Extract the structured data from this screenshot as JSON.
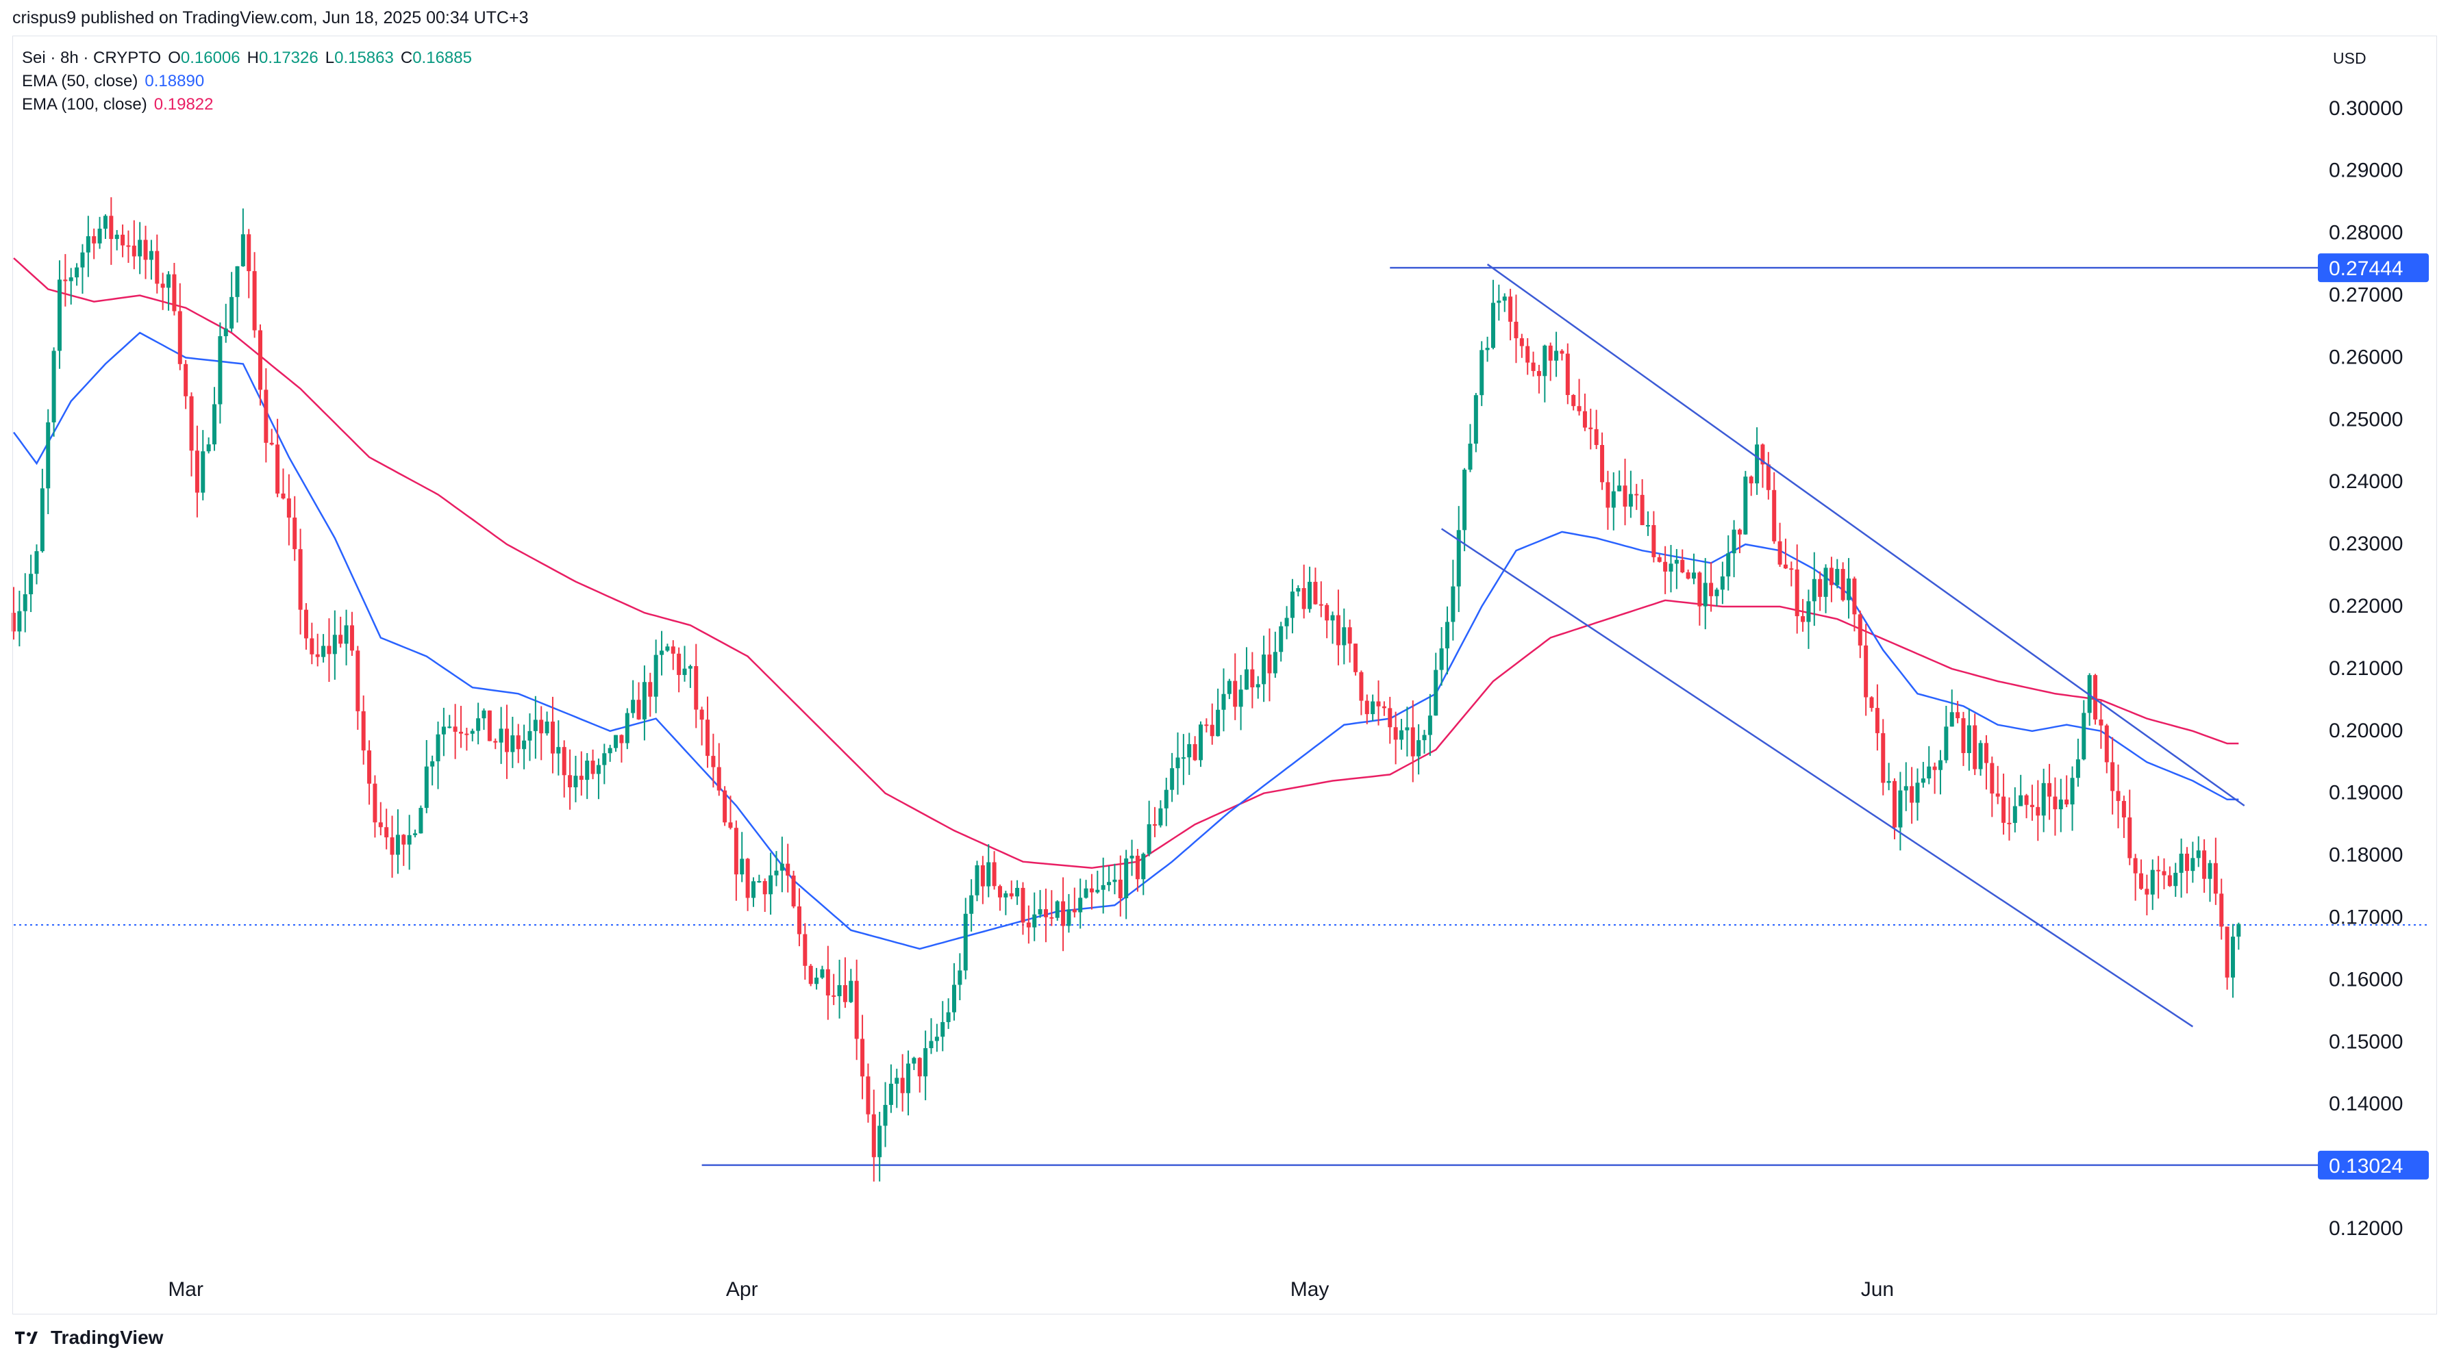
{
  "header": {
    "published": "crispus9 published on TradingView.com, Jun 18, 2025 00:34 UTC+3",
    "symbol": "Sei · 8h · CRYPTO",
    "ohlc": [
      {
        "k": "O",
        "v": "0.16006"
      },
      {
        "k": "H",
        "v": "0.17326"
      },
      {
        "k": "L",
        "v": "0.15863"
      },
      {
        "k": "C",
        "v": "0.16885"
      }
    ],
    "ema50_label": "EMA (50, close)",
    "ema50_value": "0.18890",
    "ema100_label": "EMA (100, close)",
    "ema100_value": "0.19822",
    "currency": "USD"
  },
  "footer": {
    "brand": "TradingView"
  },
  "colors": {
    "up": "#089981",
    "down": "#f23645",
    "ema50": "#2962ff",
    "ema100": "#e91e63",
    "line": "#3c5bd6",
    "badge": "#2962ff"
  },
  "chart_data": {
    "type": "candlestick",
    "timeframe": "8h",
    "ylim": [
      0.11,
      0.3
    ],
    "yticks": [
      "0.30000",
      "0.29000",
      "0.28000",
      "0.27000",
      "0.26000",
      "0.25000",
      "0.24000",
      "0.23000",
      "0.22000",
      "0.21000",
      "0.20000",
      "0.19000",
      "0.18000",
      "0.17000",
      "0.16000",
      "0.15000",
      "0.14000",
      "0.12000"
    ],
    "xticks": [
      "Mar",
      "Apr",
      "May",
      "Jun"
    ],
    "xlim_bars": [
      0,
      390
    ],
    "xtick_positions": [
      30,
      127,
      226,
      325
    ],
    "candles_anchor": [
      [
        0,
        0.219
      ],
      [
        4,
        0.227
      ],
      [
        8,
        0.27
      ],
      [
        14,
        0.281
      ],
      [
        20,
        0.279
      ],
      [
        28,
        0.27
      ],
      [
        32,
        0.236
      ],
      [
        36,
        0.262
      ],
      [
        40,
        0.279
      ],
      [
        44,
        0.249
      ],
      [
        48,
        0.232
      ],
      [
        52,
        0.21
      ],
      [
        58,
        0.217
      ],
      [
        62,
        0.19
      ],
      [
        68,
        0.179
      ],
      [
        74,
        0.201
      ],
      [
        80,
        0.202
      ],
      [
        86,
        0.197
      ],
      [
        92,
        0.2
      ],
      [
        98,
        0.192
      ],
      [
        104,
        0.195
      ],
      [
        110,
        0.206
      ],
      [
        114,
        0.213
      ],
      [
        118,
        0.208
      ],
      [
        124,
        0.184
      ],
      [
        128,
        0.175
      ],
      [
        134,
        0.178
      ],
      [
        138,
        0.162
      ],
      [
        146,
        0.159
      ],
      [
        150,
        0.133
      ],
      [
        154,
        0.143
      ],
      [
        160,
        0.148
      ],
      [
        164,
        0.158
      ],
      [
        168,
        0.178
      ],
      [
        174,
        0.174
      ],
      [
        178,
        0.169
      ],
      [
        184,
        0.17
      ],
      [
        190,
        0.174
      ],
      [
        196,
        0.178
      ],
      [
        202,
        0.194
      ],
      [
        208,
        0.2
      ],
      [
        214,
        0.208
      ],
      [
        220,
        0.212
      ],
      [
        224,
        0.222
      ],
      [
        230,
        0.219
      ],
      [
        236,
        0.205
      ],
      [
        242,
        0.198
      ],
      [
        246,
        0.197
      ],
      [
        252,
        0.232
      ],
      [
        256,
        0.262
      ],
      [
        260,
        0.272
      ],
      [
        264,
        0.258
      ],
      [
        268,
        0.262
      ],
      [
        272,
        0.254
      ],
      [
        278,
        0.238
      ],
      [
        284,
        0.236
      ],
      [
        288,
        0.224
      ],
      [
        292,
        0.227
      ],
      [
        296,
        0.219
      ],
      [
        300,
        0.231
      ],
      [
        304,
        0.245
      ],
      [
        308,
        0.228
      ],
      [
        312,
        0.219
      ],
      [
        316,
        0.226
      ],
      [
        320,
        0.222
      ],
      [
        324,
        0.201
      ],
      [
        328,
        0.187
      ],
      [
        334,
        0.192
      ],
      [
        338,
        0.202
      ],
      [
        344,
        0.194
      ],
      [
        348,
        0.186
      ],
      [
        354,
        0.19
      ],
      [
        358,
        0.187
      ],
      [
        362,
        0.208
      ],
      [
        366,
        0.193
      ],
      [
        370,
        0.175
      ],
      [
        376,
        0.176
      ],
      [
        380,
        0.181
      ],
      [
        384,
        0.176
      ],
      [
        386,
        0.16
      ],
      [
        388,
        0.169
      ]
    ],
    "ema50_anchor": [
      [
        0,
        0.248
      ],
      [
        4,
        0.243
      ],
      [
        10,
        0.253
      ],
      [
        16,
        0.259
      ],
      [
        22,
        0.264
      ],
      [
        30,
        0.26
      ],
      [
        40,
        0.259
      ],
      [
        48,
        0.244
      ],
      [
        56,
        0.231
      ],
      [
        64,
        0.215
      ],
      [
        72,
        0.212
      ],
      [
        80,
        0.207
      ],
      [
        88,
        0.206
      ],
      [
        96,
        0.203
      ],
      [
        104,
        0.2
      ],
      [
        112,
        0.202
      ],
      [
        118,
        0.196
      ],
      [
        126,
        0.188
      ],
      [
        136,
        0.176
      ],
      [
        146,
        0.168
      ],
      [
        158,
        0.165
      ],
      [
        170,
        0.168
      ],
      [
        182,
        0.171
      ],
      [
        192,
        0.172
      ],
      [
        202,
        0.179
      ],
      [
        212,
        0.187
      ],
      [
        222,
        0.194
      ],
      [
        232,
        0.201
      ],
      [
        240,
        0.202
      ],
      [
        248,
        0.206
      ],
      [
        256,
        0.22
      ],
      [
        262,
        0.229
      ],
      [
        270,
        0.232
      ],
      [
        276,
        0.231
      ],
      [
        284,
        0.229
      ],
      [
        290,
        0.228
      ],
      [
        296,
        0.227
      ],
      [
        302,
        0.23
      ],
      [
        308,
        0.229
      ],
      [
        314,
        0.226
      ],
      [
        320,
        0.222
      ],
      [
        326,
        0.213
      ],
      [
        332,
        0.206
      ],
      [
        340,
        0.204
      ],
      [
        346,
        0.201
      ],
      [
        352,
        0.2
      ],
      [
        358,
        0.201
      ],
      [
        364,
        0.2
      ],
      [
        372,
        0.195
      ],
      [
        380,
        0.192
      ],
      [
        386,
        0.189
      ]
    ],
    "ema100_anchor": [
      [
        0,
        0.276
      ],
      [
        6,
        0.271
      ],
      [
        14,
        0.269
      ],
      [
        22,
        0.27
      ],
      [
        30,
        0.268
      ],
      [
        38,
        0.264
      ],
      [
        50,
        0.255
      ],
      [
        62,
        0.244
      ],
      [
        74,
        0.238
      ],
      [
        86,
        0.23
      ],
      [
        98,
        0.224
      ],
      [
        110,
        0.219
      ],
      [
        118,
        0.217
      ],
      [
        128,
        0.212
      ],
      [
        140,
        0.201
      ],
      [
        152,
        0.19
      ],
      [
        164,
        0.184
      ],
      [
        176,
        0.179
      ],
      [
        188,
        0.178
      ],
      [
        196,
        0.179
      ],
      [
        206,
        0.185
      ],
      [
        218,
        0.19
      ],
      [
        230,
        0.192
      ],
      [
        240,
        0.193
      ],
      [
        248,
        0.197
      ],
      [
        258,
        0.208
      ],
      [
        268,
        0.215
      ],
      [
        278,
        0.218
      ],
      [
        288,
        0.221
      ],
      [
        298,
        0.22
      ],
      [
        308,
        0.22
      ],
      [
        318,
        0.218
      ],
      [
        328,
        0.214
      ],
      [
        338,
        0.21
      ],
      [
        346,
        0.208
      ],
      [
        356,
        0.206
      ],
      [
        364,
        0.205
      ],
      [
        372,
        0.202
      ],
      [
        380,
        0.2
      ],
      [
        386,
        0.198
      ]
    ],
    "horizontal_levels": [
      {
        "value": 0.27444,
        "label": "0.27444",
        "from_bar": 240
      },
      {
        "value": 0.13024,
        "label": "0.13024",
        "from_bar": 120
      }
    ],
    "current_price_line": 0.16885,
    "channel_lines": [
      {
        "from": [
          257,
          0.275
        ],
        "to": [
          389,
          0.188
        ]
      },
      {
        "from": [
          249,
          0.2325
        ],
        "to": [
          380,
          0.1525
        ]
      }
    ]
  }
}
